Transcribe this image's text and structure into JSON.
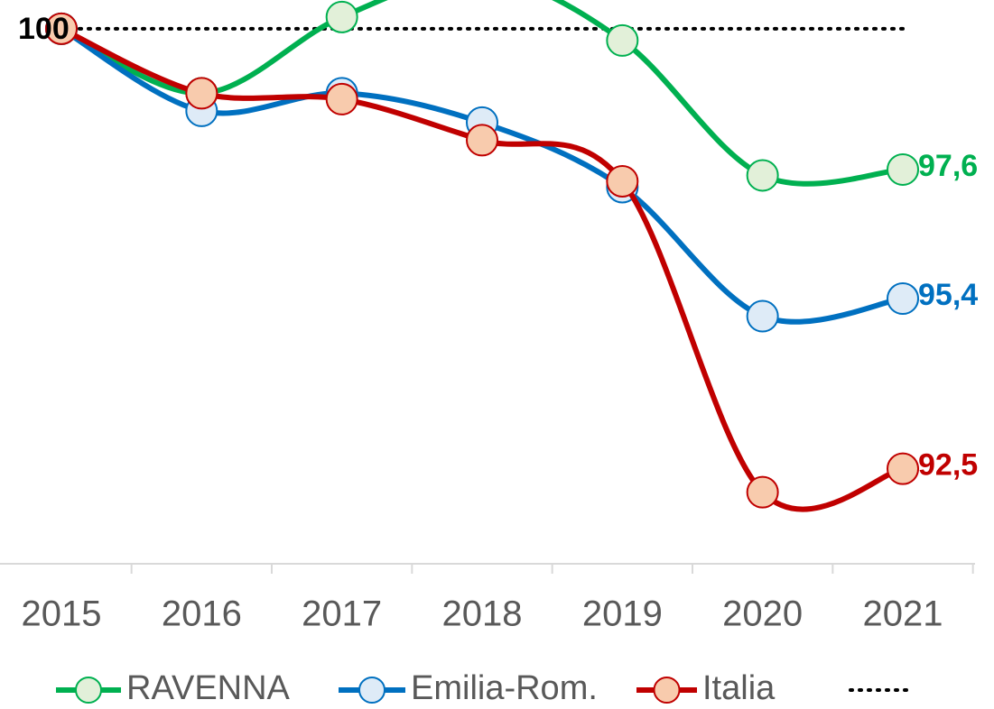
{
  "chart_data": {
    "type": "line",
    "categories": [
      "2015",
      "2016",
      "2017",
      "2018",
      "2019",
      "2020",
      "2021"
    ],
    "series": [
      {
        "name": "RAVENNA",
        "color": "#00b050",
        "marker_fill": "#e2f0d9",
        "values": [
          100,
          98.9,
          100.2,
          100.9,
          99.8,
          97.5,
          97.6
        ],
        "value_labels": [
          null,
          null,
          null,
          null,
          null,
          null,
          "97,6"
        ]
      },
      {
        "name": "Emilia-Rom.",
        "color": "#0070c0",
        "marker_fill": "#deebf7",
        "values": [
          100,
          98.6,
          98.9,
          98.4,
          97.3,
          95.1,
          95.4
        ],
        "value_labels": [
          null,
          null,
          null,
          null,
          null,
          null,
          "95,4"
        ]
      },
      {
        "name": "Italia",
        "color": "#c00000",
        "marker_fill": "#f8cbad",
        "values": [
          100,
          98.9,
          98.8,
          98.1,
          97.4,
          92.1,
          92.5
        ],
        "value_labels": [
          null,
          null,
          null,
          null,
          null,
          null,
          "92,5"
        ]
      }
    ],
    "reference": 100,
    "ylim": [
      90.88,
      100.49
    ],
    "legend": "bottom"
  }
}
